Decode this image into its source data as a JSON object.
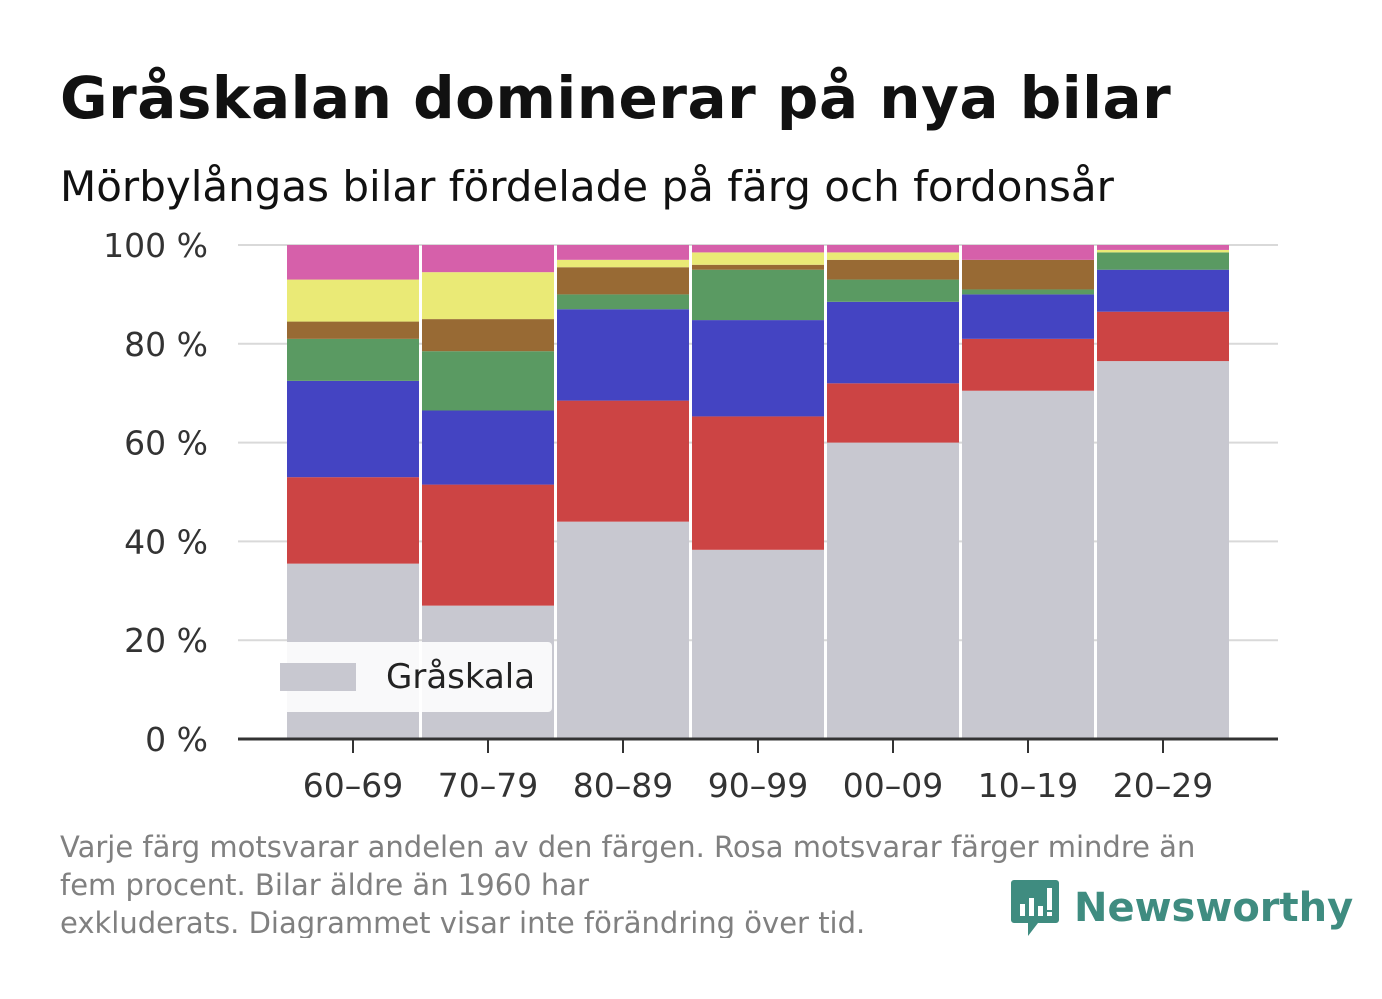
{
  "title": "Gråskalan dominerar på nya bilar",
  "subtitle": "Mörbylångas bilar fördelade på färg och fordonsår",
  "footnote": {
    "line1": "Varje färg motsvarar andelen av den färgen. Rosa motsvarar färger mindre än",
    "line2": "fem procent. Bilar äldre än 1960 har",
    "line3": "exkluderats. Diagrammet visar inte förändring över tid."
  },
  "brand": {
    "name": "Newsworthy",
    "logo_icon": "newsworthy-logo-icon",
    "color": "#3f8c80"
  },
  "legend": {
    "label": "Gråskala",
    "color": "#c8c8d0"
  },
  "chart_data": {
    "type": "bar",
    "stacked": true,
    "title": "Gråskalan dominerar på nya bilar",
    "subtitle": "Mörbylångas bilar fördelade på färg och fordonsår",
    "categories": [
      "60–69",
      "70–79",
      "80–89",
      "90–99",
      "00–09",
      "10–19",
      "20–29"
    ],
    "y_ticks": [
      "0 %",
      "20 %",
      "40 %",
      "60 %",
      "80 %",
      "100 %"
    ],
    "ylim": [
      0,
      100
    ],
    "grid": true,
    "legend_position": "bottom-left",
    "series": [
      {
        "name": "Gråskala",
        "color": "#c8c8d0",
        "values": [
          35.5,
          27,
          44,
          38.3,
          60,
          70.5,
          76.5
        ]
      },
      {
        "color": "#cc4444",
        "values": [
          17.5,
          24.5,
          24.5,
          27,
          12,
          10.5,
          10
        ]
      },
      {
        "color": "#4444c2",
        "values": [
          19.5,
          15,
          18.5,
          19.5,
          16.5,
          9,
          8.5
        ]
      },
      {
        "color": "#5a9a62",
        "values": [
          8.5,
          12,
          3,
          10.2,
          4.5,
          1,
          3.5
        ]
      },
      {
        "color": "#986a34",
        "values": [
          3.5,
          6.5,
          5.5,
          1,
          4,
          6,
          0
        ]
      },
      {
        "color": "#eaea76",
        "values": [
          8.5,
          9.5,
          1.5,
          2.5,
          1.5,
          0,
          0.5
        ]
      },
      {
        "color": "#d660aa",
        "values": [
          7,
          5.5,
          3,
          1.5,
          1.5,
          3,
          1
        ]
      }
    ]
  }
}
